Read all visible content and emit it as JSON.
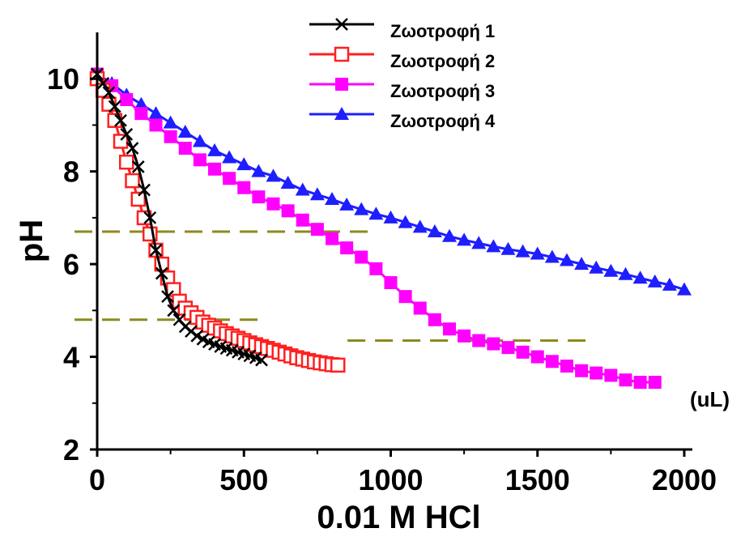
{
  "chart_data": {
    "type": "line",
    "xlabel": "0.01 M HCl",
    "ylabel": "pH",
    "x_unit": "(uL)",
    "xlim": [
      0,
      2000
    ],
    "ylim": [
      2,
      11
    ],
    "xticks": [
      0,
      500,
      1000,
      1500,
      2000
    ],
    "yticks": [
      2,
      4,
      6,
      8,
      10
    ],
    "grid": false,
    "legend_position": "top-center",
    "reference_lines": [
      {
        "y": 6.7,
        "x_range": [
          0,
          930
        ],
        "color": "#8c8a1e",
        "style": "dashed"
      },
      {
        "y": 4.8,
        "x_range": [
          0,
          560
        ],
        "color": "#8c8a1e",
        "style": "dashed"
      },
      {
        "y": 4.35,
        "x_range": [
          930,
          1680
        ],
        "color": "#8c8a1e",
        "style": "dashed"
      }
    ],
    "series": [
      {
        "name": "Ζωοτροφή 1",
        "color": "#000000",
        "marker": "x",
        "x": [
          0,
          20,
          40,
          60,
          80,
          100,
          120,
          140,
          160,
          180,
          200,
          220,
          240,
          260,
          280,
          300,
          320,
          340,
          360,
          380,
          400,
          420,
          440,
          460,
          480,
          500,
          520,
          540,
          560
        ],
        "y": [
          10.1,
          9.9,
          9.7,
          9.4,
          9.1,
          8.8,
          8.5,
          8.1,
          7.6,
          7.0,
          6.3,
          5.8,
          5.3,
          5.0,
          4.8,
          4.65,
          4.55,
          4.45,
          4.38,
          4.32,
          4.27,
          4.22,
          4.18,
          4.14,
          4.1,
          4.06,
          4.02,
          3.98,
          3.93
        ]
      },
      {
        "name": "Ζωοτροφή 2",
        "color": "#ff2020",
        "marker": "square-open",
        "x": [
          0,
          20,
          40,
          60,
          80,
          100,
          120,
          140,
          160,
          180,
          200,
          220,
          240,
          260,
          280,
          300,
          320,
          340,
          360,
          380,
          400,
          420,
          440,
          460,
          480,
          500,
          520,
          540,
          560,
          580,
          600,
          620,
          640,
          660,
          680,
          700,
          720,
          740,
          760,
          780,
          800,
          820
        ],
        "y": [
          10.0,
          9.75,
          9.45,
          9.1,
          8.65,
          8.2,
          7.8,
          7.4,
          7.0,
          6.65,
          6.3,
          6.0,
          5.7,
          5.45,
          5.2,
          5.05,
          4.95,
          4.85,
          4.75,
          4.68,
          4.62,
          4.56,
          4.5,
          4.45,
          4.4,
          4.35,
          4.3,
          4.26,
          4.22,
          4.18,
          4.14,
          4.1,
          4.06,
          4.02,
          3.98,
          3.95,
          3.92,
          3.89,
          3.87,
          3.85,
          3.83,
          3.82
        ]
      },
      {
        "name": "Ζωοτροφή 3",
        "color": "#ff00ff",
        "marker": "square-filled",
        "x": [
          0,
          50,
          100,
          150,
          200,
          250,
          300,
          350,
          400,
          450,
          500,
          550,
          600,
          650,
          700,
          750,
          800,
          850,
          900,
          950,
          1000,
          1050,
          1100,
          1150,
          1200,
          1250,
          1300,
          1350,
          1400,
          1450,
          1500,
          1550,
          1600,
          1650,
          1700,
          1750,
          1800,
          1850,
          1900
        ],
        "y": [
          10.1,
          9.85,
          9.55,
          9.25,
          9.0,
          8.75,
          8.5,
          8.25,
          8.05,
          7.85,
          7.65,
          7.45,
          7.3,
          7.15,
          6.95,
          6.75,
          6.55,
          6.35,
          6.15,
          5.9,
          5.6,
          5.3,
          5.05,
          4.8,
          4.6,
          4.45,
          4.35,
          4.28,
          4.2,
          4.1,
          4.0,
          3.9,
          3.8,
          3.7,
          3.65,
          3.6,
          3.5,
          3.45,
          3.45
        ]
      },
      {
        "name": "Ζωοτροφή 4",
        "color": "#1e1eff",
        "marker": "triangle-filled",
        "x": [
          0,
          50,
          100,
          150,
          200,
          250,
          300,
          350,
          400,
          450,
          500,
          550,
          600,
          650,
          700,
          750,
          800,
          850,
          900,
          950,
          1000,
          1050,
          1100,
          1150,
          1200,
          1250,
          1300,
          1350,
          1400,
          1450,
          1500,
          1550,
          1600,
          1650,
          1700,
          1750,
          1800,
          1850,
          1900,
          1950,
          2000
        ],
        "y": [
          10.1,
          9.9,
          9.65,
          9.45,
          9.25,
          9.05,
          8.85,
          8.65,
          8.45,
          8.3,
          8.15,
          8.0,
          7.9,
          7.75,
          7.6,
          7.5,
          7.4,
          7.28,
          7.18,
          7.08,
          7.0,
          6.9,
          6.8,
          6.7,
          6.6,
          6.52,
          6.45,
          6.38,
          6.32,
          6.27,
          6.22,
          6.15,
          6.08,
          6.0,
          5.92,
          5.85,
          5.78,
          5.7,
          5.62,
          5.55,
          5.45
        ]
      }
    ]
  }
}
